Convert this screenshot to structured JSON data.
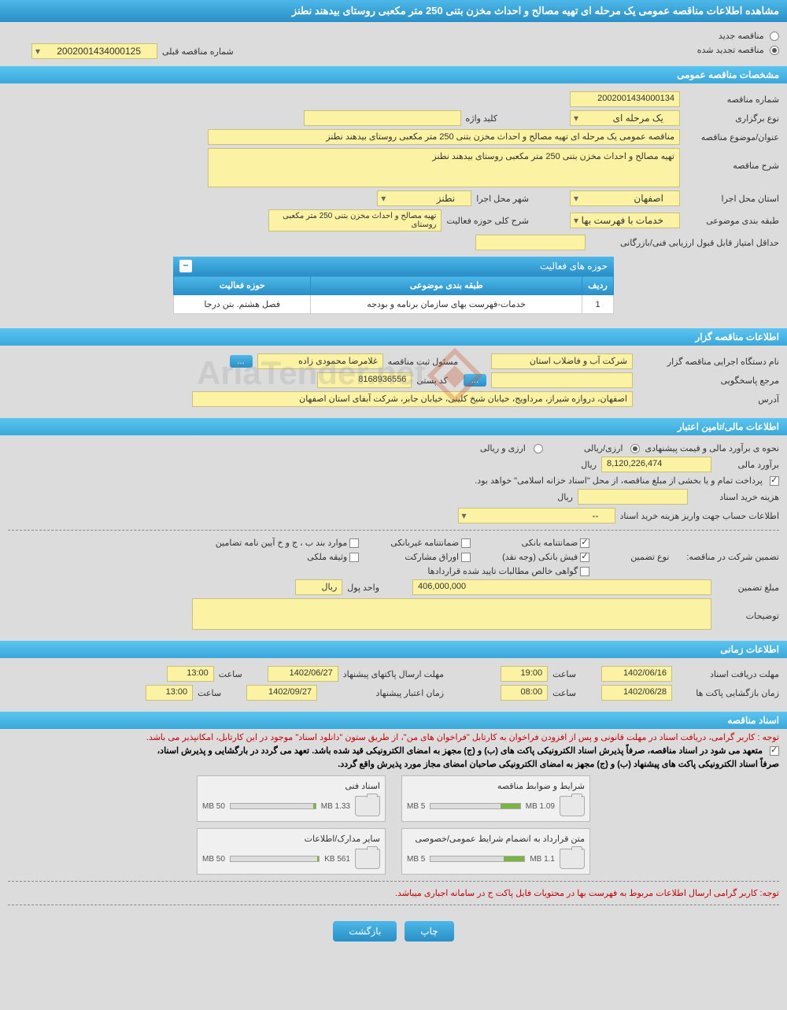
{
  "header": {
    "title": "مشاهده اطلاعات مناقصه عمومی یک مرحله ای تهیه مصالح و احداث مخزن بتنی 250 متر مکعبی روستای بیدهند نطنز"
  },
  "radios": {
    "new_label": "مناقصه جدید",
    "renewed_label": "مناقصه تجدید شده",
    "prev_no_label": "شماره مناقصه قبلی",
    "prev_no_value": "2002001434000125"
  },
  "sections": {
    "general": "مشخصات مناقصه عمومی",
    "issuer": "اطلاعات مناقصه گزار",
    "financial": "اطلاعات مالی/تامین اعتبار",
    "timing": "اطلاعات زمانی",
    "docs": "اسناد مناقصه"
  },
  "general": {
    "tender_no_label": "شماره مناقصه",
    "tender_no": "2002001434000134",
    "type_label": "نوع برگزاری",
    "type_value": "یک مرحله ای",
    "keyword_label": "کلید واژه",
    "keyword_value": "",
    "subject_label": "عنوان/موضوع مناقصه",
    "subject_value": "مناقصه عمومی یک مرحله ای تهیه مصالح و احداث مخزن بتنی 250 متر مکعبی روستای بیدهند نطنز",
    "desc_label": "شرح مناقصه",
    "desc_value": "تهیه مصالح و احداث مخزن بتنی 250 متر مکعبی روستای بیدهند نطنز",
    "province_label": "استان محل اجرا",
    "province_value": "اصفهان",
    "city_label": "شهر محل اجرا",
    "city_value": "نطنز",
    "category_label": "طبقه بندی موضوعی",
    "category_value": "خدمات با فهرست بها",
    "activity_label": "شرح کلی حوزه فعالیت",
    "activity_value": "تهیه مصالح و احداث مخزن بتنی 250 متر مکعبی روستای",
    "min_score_label": "حداقل امتیاز قابل قبول ارزیابی فنی/بازرگانی",
    "min_score_value": ""
  },
  "activity_table": {
    "title": "حوزه های فعالیت",
    "col_row": "ردیف",
    "col_category": "طبقه بندی موضوعی",
    "col_scope": "حوزه فعالیت",
    "row1_no": "1",
    "row1_cat": "خدمات-فهرست بهای سازمان برنامه و بودجه",
    "row1_scope": "فصل هشتم. بتن درجا"
  },
  "issuer": {
    "org_label": "نام دستگاه اجرایی مناقصه گزار",
    "org_value": "شرکت آب و فاضلاب استان",
    "manager_label": "مسئول ثبت مناقصه",
    "manager_value": "غلامرضا محمودی زاده",
    "contact_label": "مرجع پاسخگویی",
    "contact_value": "",
    "postal_label": "کد پستی",
    "postal_value": "8168936556",
    "address_label": "آدرس",
    "address_value": "اصفهان، دروازه شیراز، مرداویج، خیابان شیخ کلینی، خیابان جابر، شرکت آبفای استان اصفهان"
  },
  "financial": {
    "estimate_method_label": "نحوه ی برآورد مالی و قیمت پیشنهادی",
    "currency_mixed": "ارزی/ریالی",
    "currency_both": "ارزی و ریالی",
    "estimate_label": "برآورد مالی",
    "estimate_value": "8,120,226,474",
    "rial": "ریال",
    "treasury_note": "پرداخت تمام و یا بخشی از مبلغ مناقصه، از محل \"اسناد خزانه اسلامی\" خواهد بود.",
    "doc_cost_label": "هزینه خرید اسناد",
    "doc_cost_value": "",
    "account_info_label": "اطلاعات حساب جهت واریز هزینه خرید اسناد",
    "account_select": "--",
    "guarantee_title": "تضمین شرکت در مناقصه:",
    "guarantee_type_label": "نوع تضمین",
    "g_bank": "ضمانتنامه بانکی",
    "g_nonbank": "ضمانتنامه غیربانکی",
    "g_bylaw": "موارد بند ب ، ج و خ آیین نامه تضامین",
    "g_cash": "فیش بانکی (وجه نقد)",
    "g_bonds": "اوراق مشارکت",
    "g_property": "وثیقه ملکی",
    "g_claims": "گواهی خالص مطالبات تایید شده قراردادها",
    "g_amount_label": "مبلغ تضمین",
    "g_amount_value": "406,000,000",
    "g_unit_label": "واحد پول",
    "g_unit_value": "ریال",
    "g_notes_label": "توضیحات",
    "g_notes_value": ""
  },
  "timing": {
    "doc_deadline_label": "مهلت دریافت اسناد",
    "doc_deadline_date": "1402/06/16",
    "time_label": "ساعت",
    "doc_deadline_time": "19:00",
    "bid_deadline_label": "مهلت ارسال پاکتهای پیشنهاد",
    "bid_deadline_date": "1402/06/27",
    "bid_deadline_time": "13:00",
    "open_label": "زمان بازگشایی پاکت ها",
    "open_date": "1402/06/28",
    "open_time": "08:00",
    "validity_label": "زمان اعتبار پیشنهاد",
    "validity_date": "1402/09/27",
    "validity_time": "13:00"
  },
  "docs": {
    "note1": "توجه : کاربر گرامی، دریافت اسناد در مهلت قانونی و پس از افزودن فراخوان به کارتابل \"فراخوان های من\"، از طریق ستون \"دانلود اسناد\" موجود در این کارتابل، امکانپذیر می باشد.",
    "note2a": "متعهد می شود در اسناد مناقصه، صرفاً پذیرش اسناد الکترونیکی پاکت های (ب) و (ج) مجهز به امضای الکترونیکی قید شده باشد. تعهد می گردد در بارگشایی و پذیرش اسناد،",
    "note2b": "صرفاً اسناد الکترونیکی پاکت های پیشنهاد (ب) و (ج) مجهز به امضای الکترونیکی صاحبان امضای مجاز مورد پذیرش واقع گردد.",
    "note3": "توجه: کاربر گرامی ارسال اطلاعات مربوط به فهرست بها در محتویات فایل پاکت ج در سامانه اجباری میباشد.",
    "f1_title": "شرایط و ضوابط مناقصه",
    "f1_size": "1.09 MB",
    "f1_limit": "5 MB",
    "f1_pct": 22,
    "f2_title": "اسناد فنی",
    "f2_size": "1.33 MB",
    "f2_limit": "50 MB",
    "f2_pct": 3,
    "f3_title": "متن قرارداد به انضمام شرایط عمومی/خصوصی",
    "f3_size": "1.1 MB",
    "f3_limit": "5 MB",
    "f3_pct": 22,
    "f4_title": "سایر مدارک/اطلاعات",
    "f4_size": "561 KB",
    "f4_limit": "50 MB",
    "f4_pct": 2
  },
  "buttons": {
    "print": "چاپ",
    "back": "بازگشت",
    "more": "..."
  },
  "watermark": "AriaTender.net"
}
